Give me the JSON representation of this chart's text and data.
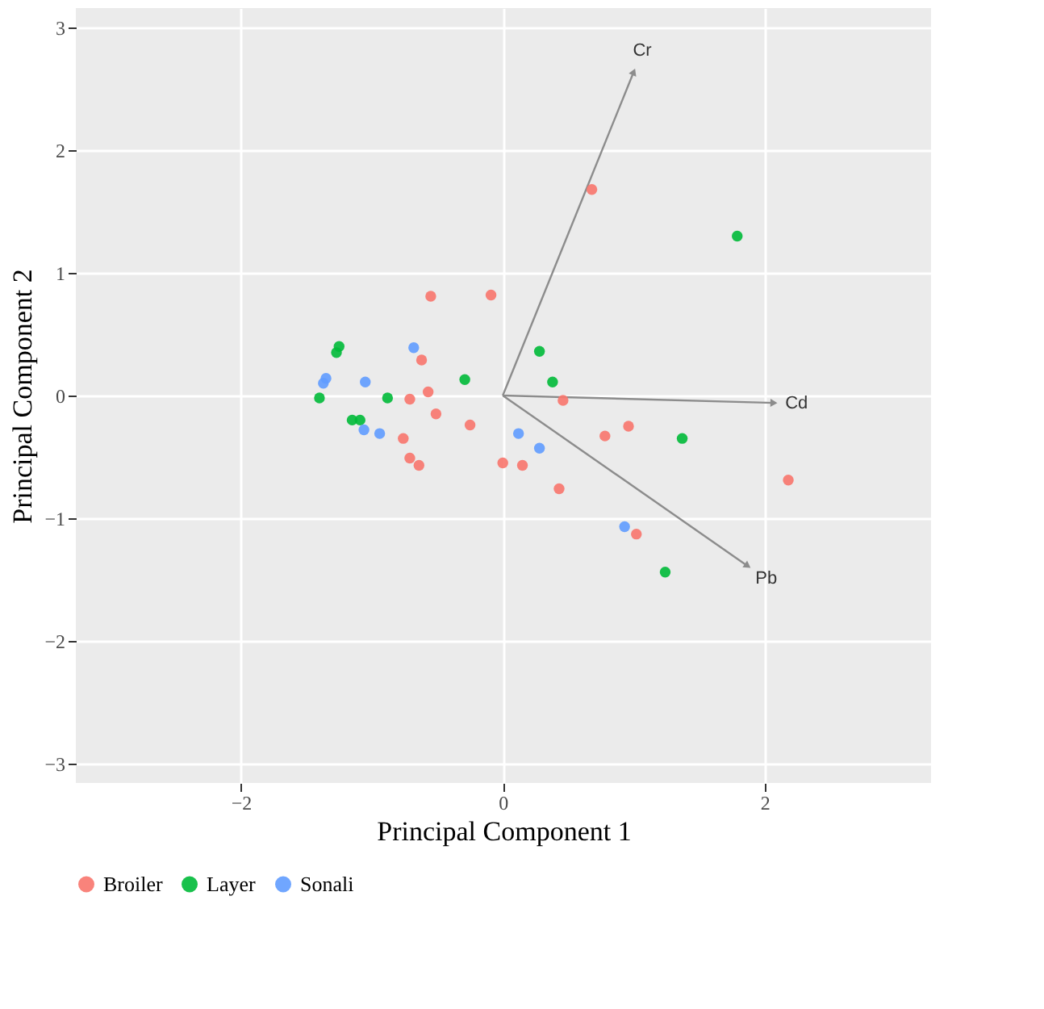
{
  "chart_data": {
    "type": "scatter",
    "xlabel": "Principal Component 1",
    "ylabel": "Principal Component 2",
    "xlim": [
      -3.26,
      3.27
    ],
    "ylim": [
      -3.16,
      3.16
    ],
    "xticks": [
      -2,
      0,
      2
    ],
    "yticks": [
      -3,
      -2,
      -1,
      0,
      1,
      2,
      3
    ],
    "grid": true,
    "legend": "bottom",
    "marker": "circle",
    "series": [
      {
        "name": "Broiler",
        "color": "#f8766d",
        "x": [
          0.68,
          -0.55,
          -0.09,
          -0.62,
          -0.57,
          -0.71,
          -0.51,
          -0.25,
          -0.76,
          -0.71,
          -0.64,
          0.0,
          0.46,
          0.96,
          0.78,
          0.15,
          0.43,
          2.18,
          1.02
        ],
        "values": [
          1.68,
          0.81,
          0.82,
          0.29,
          0.03,
          -0.03,
          -0.15,
          -0.24,
          -0.35,
          -0.51,
          -0.57,
          -0.55,
          -0.04,
          -0.25,
          -0.33,
          -0.57,
          -0.76,
          -0.69,
          -1.13
        ]
      },
      {
        "name": "Layer",
        "color": "#00ba38",
        "x": [
          1.79,
          -0.29,
          -1.25,
          -1.27,
          -1.4,
          -0.88,
          -1.15,
          -1.09,
          0.28,
          0.38,
          1.37,
          1.24
        ],
        "values": [
          1.3,
          0.13,
          0.4,
          0.35,
          -0.02,
          -0.02,
          -0.2,
          -0.2,
          0.36,
          0.11,
          -0.35,
          -1.44
        ]
      },
      {
        "name": "Sonali",
        "color": "#619cff",
        "x": [
          -0.68,
          -1.35,
          -1.37,
          -1.05,
          -1.06,
          -0.94,
          0.12,
          0.28,
          0.93
        ],
        "values": [
          0.39,
          0.14,
          0.1,
          0.11,
          -0.28,
          -0.31,
          -0.31,
          -0.43,
          -1.07
        ]
      },
      {
        "type": "line",
        "name": "Cr",
        "color": "#8c8c8c",
        "marker": "triangle",
        "x": [
          0,
          1.0
        ],
        "values": [
          0,
          2.64
        ]
      },
      {
        "type": "line",
        "name": "Cd",
        "color": "#8c8c8c",
        "marker": "triangle",
        "x": [
          0,
          2.07
        ],
        "values": [
          0,
          -0.06
        ]
      },
      {
        "type": "line",
        "name": "Pb",
        "color": "#8c8c8c",
        "marker": "triangle",
        "x": [
          0,
          1.87
        ],
        "values": [
          0,
          -1.39
        ]
      }
    ]
  }
}
